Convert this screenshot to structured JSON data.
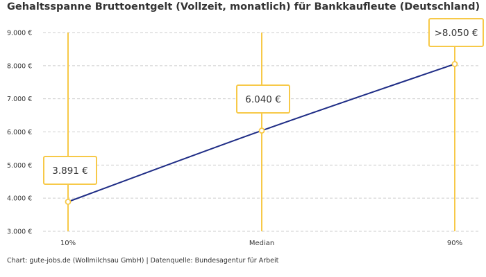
{
  "chart_data": {
    "type": "line",
    "title": "Gehaltsspanne Bruttoentgelt (Vollzeit, monatlich) für Bankkaufleute (Deutschland)",
    "categories": [
      "10%",
      "Median",
      "90%"
    ],
    "series": [
      {
        "values": [
          3891,
          6040,
          8050
        ]
      }
    ],
    "data_labels": [
      "3.891 €",
      "6.040 €",
      ">8.050 €"
    ],
    "y_ticks": [
      {
        "value": 3000,
        "label": "3.000 €"
      },
      {
        "value": 4000,
        "label": "4.000 €"
      },
      {
        "value": 5000,
        "label": "5.000 €"
      },
      {
        "value": 6000,
        "label": "6.000 €"
      },
      {
        "value": 7000,
        "label": "7.000 €"
      },
      {
        "value": 8000,
        "label": "8.000 €"
      },
      {
        "value": 9000,
        "label": "9.000 €"
      }
    ],
    "ylim": [
      3000,
      9000
    ],
    "xlabel": "",
    "ylabel": "",
    "grid": true,
    "source": "Chart: gute-jobs.de (Wollmilchsau GmbH) | Datenquelle: Bundesagentur für Arbeit",
    "colors": {
      "line": "#1f2d86",
      "accent": "#f7c948",
      "grid": "#cccccc",
      "text": "#333333"
    }
  }
}
